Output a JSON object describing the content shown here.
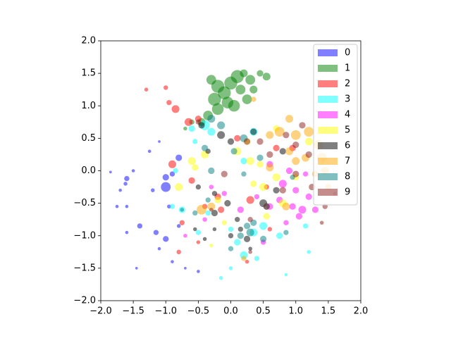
{
  "chart_data": {
    "type": "scatter",
    "alpha": 0.5,
    "legend": "upper right",
    "xlim": [
      -2,
      2
    ],
    "ylim": [
      -2,
      2
    ],
    "xticks": [
      {
        "value": -2,
        "label": "−2.0"
      },
      {
        "value": -1.5,
        "label": "−1.5"
      },
      {
        "value": -1,
        "label": "−1.0"
      },
      {
        "value": -0.5,
        "label": "−0.5"
      },
      {
        "value": 0,
        "label": "0.0"
      },
      {
        "value": 0.5,
        "label": "0.5"
      },
      {
        "value": 1,
        "label": "1.0"
      },
      {
        "value": 1.5,
        "label": "1.5"
      },
      {
        "value": 2,
        "label": "2.0"
      }
    ],
    "yticks": [
      {
        "value": -2,
        "label": "−2.0"
      },
      {
        "value": -1.5,
        "label": "−1.5"
      },
      {
        "value": -1,
        "label": "−1.0"
      },
      {
        "value": -0.5,
        "label": "−0.5"
      },
      {
        "value": 0,
        "label": "0.0"
      },
      {
        "value": 0.5,
        "label": "0.5"
      },
      {
        "value": 1,
        "label": "1.0"
      },
      {
        "value": 1.5,
        "label": "1.5"
      },
      {
        "value": 2,
        "label": "2.0"
      }
    ],
    "series": [
      {
        "name": "0",
        "color": "#0000ff",
        "x": [
          -1.85,
          -1.6,
          -1.62,
          -1.5,
          -1.7,
          -1.75,
          -1.6,
          -1.4,
          -1.2,
          -1.0,
          -1.0,
          -0.9,
          -1.15,
          -1.0,
          -0.8,
          -1.45,
          -1.1,
          -0.9,
          -0.7,
          -1.1,
          -0.8,
          -0.5,
          -1.6,
          -1.25,
          -0.95
        ],
        "values": [
          -0.02,
          -0.12,
          -0.2,
          0.0,
          -0.3,
          -0.55,
          -0.55,
          -0.85,
          -0.3,
          -0.25,
          -0.1,
          -0.05,
          -0.95,
          -1.05,
          -0.85,
          -1.5,
          -1.2,
          -1.4,
          -1.5,
          0.45,
          0.2,
          -1.55,
          -0.95,
          0.3,
          -0.55
        ],
        "sizes": [
          0.04,
          0.08,
          0.06,
          0.05,
          0.05,
          0.05,
          0.05,
          0.08,
          0.06,
          0.15,
          0.1,
          0.08,
          0.08,
          0.09,
          0.06,
          0.04,
          0.05,
          0.05,
          0.04,
          0.04,
          0.1,
          0.05,
          0.05,
          0.05,
          0.06
        ]
      },
      {
        "name": "1",
        "color": "#008000",
        "x": [
          -0.3,
          -0.2,
          -0.1,
          0.0,
          0.1,
          -0.05,
          -0.2,
          -0.35,
          0.15,
          0.3,
          0.45,
          0.55,
          0.2,
          -0.45,
          0.35,
          -0.7,
          -0.25,
          0.05,
          0.25,
          -0.6
        ],
        "values": [
          1.4,
          1.3,
          1.2,
          1.35,
          1.45,
          1.05,
          0.95,
          0.85,
          1.25,
          1.4,
          1.5,
          1.45,
          1.5,
          0.75,
          1.25,
          0.65,
          1.1,
          1.0,
          1.1,
          0.75
        ],
        "sizes": [
          0.15,
          0.2,
          0.2,
          0.2,
          0.2,
          0.18,
          0.18,
          0.15,
          0.15,
          0.15,
          0.1,
          0.12,
          0.12,
          0.12,
          0.12,
          0.06,
          0.2,
          0.18,
          0.15,
          0.08
        ]
      },
      {
        "name": "2",
        "color": "#ff0000",
        "x": [
          -1.3,
          -1.0,
          -0.95,
          -0.85,
          -0.5,
          -0.65,
          -0.9,
          -0.6,
          -0.3,
          0.3,
          -0.15,
          -0.5,
          -0.8,
          -0.2,
          0.25,
          0.55,
          0.7,
          0.95,
          0.1,
          -0.4,
          0.6,
          -0.75
        ],
        "values": [
          1.25,
          1.28,
          1.05,
          0.95,
          0.8,
          0.75,
          0.1,
          -0.15,
          0.0,
          -0.45,
          -0.6,
          -1.1,
          -1.25,
          -0.4,
          -1.4,
          -0.25,
          0.35,
          0.35,
          0.5,
          -0.55,
          -0.9,
          -0.8
        ],
        "sizes": [
          0.06,
          0.07,
          0.08,
          0.12,
          0.1,
          0.12,
          0.12,
          0.1,
          0.1,
          0.12,
          0.1,
          0.06,
          0.07,
          0.1,
          0.06,
          0.08,
          0.1,
          0.1,
          0.1,
          0.08,
          0.07,
          0.08
        ]
      },
      {
        "name": "3",
        "color": "#00ffff",
        "x": [
          -0.6,
          -0.4,
          -0.3,
          -0.85,
          -0.3,
          -0.55,
          -0.9,
          -0.75,
          -0.35,
          0.0,
          0.1,
          0.2,
          0.35,
          0.5,
          0.75,
          1.15,
          1.2,
          0.4,
          0.0,
          0.35,
          -0.15,
          0.85,
          -0.5,
          0.2
        ],
        "values": [
          0.65,
          0.7,
          0.6,
          0.0,
          0.0,
          0.45,
          -0.55,
          -0.6,
          -0.65,
          -0.9,
          -1.1,
          -1.3,
          -0.95,
          -0.85,
          -1.0,
          -0.85,
          -1.25,
          -1.35,
          -1.5,
          0.6,
          -1.65,
          -1.6,
          -0.95,
          0.15
        ],
        "sizes": [
          0.1,
          0.15,
          0.12,
          0.08,
          0.1,
          0.08,
          0.08,
          0.1,
          0.08,
          0.08,
          0.1,
          0.12,
          0.12,
          0.12,
          0.1,
          0.08,
          0.06,
          0.08,
          0.06,
          0.12,
          0.06,
          0.05,
          0.08,
          0.1
        ]
      },
      {
        "name": "4",
        "color": "#ff00ff",
        "x": [
          0.95,
          1.1,
          1.2,
          1.3,
          0.85,
          1.0,
          0.8,
          0.4,
          0.6,
          0.15,
          -0.1,
          -0.3,
          1.05,
          0.9,
          0.6,
          -0.7,
          0.5,
          -0.4,
          1.15,
          0.75
        ],
        "values": [
          -0.55,
          -0.6,
          -0.4,
          -0.6,
          -0.8,
          -0.3,
          -0.2,
          -0.4,
          0.1,
          -0.6,
          -0.35,
          -0.25,
          -0.7,
          0.0,
          -0.55,
          -1.0,
          -1.1,
          -0.75,
          -0.05,
          -0.45
        ],
        "sizes": [
          0.1,
          0.12,
          0.1,
          0.1,
          0.08,
          0.1,
          0.12,
          0.08,
          0.1,
          0.1,
          0.08,
          0.07,
          0.1,
          0.1,
          0.1,
          0.06,
          0.08,
          0.07,
          0.08,
          0.1
        ]
      },
      {
        "name": "5",
        "color": "#ffff00",
        "x": [
          -0.6,
          -0.4,
          0.1,
          0.3,
          0.25,
          0.5,
          0.7,
          0.8,
          0.55,
          -0.2,
          -0.8,
          1.2,
          0.45,
          -0.1,
          -0.55,
          1.0,
          -0.3,
          0.7,
          0.35
        ],
        "values": [
          0.15,
          0.25,
          0.3,
          0.15,
          0.45,
          -0.25,
          -0.1,
          -0.5,
          -0.7,
          -0.45,
          -0.25,
          0.45,
          0.1,
          -0.8,
          0.05,
          -0.1,
          -1.15,
          0.65,
          -0.2
        ],
        "sizes": [
          0.12,
          0.12,
          0.12,
          0.12,
          0.1,
          0.12,
          0.12,
          0.12,
          0.1,
          0.1,
          0.12,
          0.12,
          0.1,
          0.08,
          0.1,
          0.1,
          0.06,
          0.1,
          0.1
        ]
      },
      {
        "name": "6",
        "color": "#000000",
        "x": [
          -0.45,
          0.35,
          -0.15,
          -0.35,
          0.0,
          -0.25,
          -0.05,
          -0.25,
          0.0,
          0.25,
          0.15,
          -0.4,
          -0.5,
          -0.55,
          0.3,
          0.5,
          0.8,
          0.7,
          -0.25,
          0.1
        ],
        "values": [
          0.7,
          0.6,
          0.55,
          0.3,
          0.45,
          -0.35,
          -0.5,
          -0.65,
          -1.0,
          -1.05,
          -0.9,
          -1.05,
          -0.25,
          -0.9,
          -1.2,
          -0.5,
          0.3,
          -0.3,
          -0.9,
          -0.75
        ],
        "sizes": [
          0.1,
          0.1,
          0.12,
          0.08,
          0.1,
          0.08,
          0.1,
          0.1,
          0.08,
          0.1,
          0.08,
          0.06,
          0.08,
          0.06,
          0.06,
          0.12,
          0.1,
          0.1,
          0.06,
          0.08
        ]
      },
      {
        "name": "7",
        "color": "#ffa500",
        "x": [
          0.6,
          0.75,
          0.9,
          1.0,
          1.2,
          1.35,
          1.4,
          1.45,
          1.3,
          1.0,
          0.85,
          -0.45,
          -0.3,
          0.35,
          1.5,
          0.6,
          0.2,
          0.9,
          1.15
        ],
        "values": [
          0.55,
          0.6,
          0.8,
          0.55,
          0.6,
          0.4,
          0.2,
          0.0,
          -0.05,
          0.15,
          -0.55,
          -0.6,
          -0.55,
          1.1,
          -0.25,
          0.05,
          -1.35,
          0.3,
          0.2
        ],
        "sizes": [
          0.12,
          0.15,
          0.12,
          0.15,
          0.15,
          0.15,
          0.15,
          0.12,
          0.1,
          0.12,
          0.12,
          0.15,
          0.12,
          0.08,
          0.1,
          0.12,
          0.08,
          0.12,
          0.12
        ]
      },
      {
        "name": "8",
        "color": "#008080",
        "x": [
          -0.3,
          -0.15,
          0.2,
          0.05,
          -0.4,
          0.2,
          0.55,
          0.3,
          0.15,
          0.5,
          0.35,
          -0.55,
          -0.35,
          0.95,
          0.85,
          -0.75,
          0.25,
          0.0,
          0.45
        ],
        "values": [
          0.8,
          0.7,
          0.5,
          0.3,
          0.35,
          -0.05,
          -0.55,
          -0.95,
          -1.0,
          -1.05,
          -0.8,
          -0.65,
          -0.45,
          -0.1,
          -0.95,
          -0.6,
          -0.85,
          -1.2,
          0.2
        ],
        "sizes": [
          0.12,
          0.12,
          0.12,
          0.1,
          0.1,
          0.08,
          0.1,
          0.12,
          0.1,
          0.1,
          0.1,
          0.08,
          0.08,
          0.08,
          0.08,
          0.06,
          0.1,
          0.08,
          0.1
        ]
      },
      {
        "name": "9",
        "color": "#8b1a1a",
        "x": [
          -0.5,
          0.25,
          0.6,
          0.85,
          1.0,
          1.1,
          1.2,
          1.25,
          1.45,
          1.4,
          0.55,
          -0.1,
          -0.3,
          0.3,
          0.8,
          1.0,
          0.3,
          1.6,
          0.45
        ],
        "values": [
          0.75,
          0.45,
          0.25,
          0.55,
          0.4,
          0.7,
          0.25,
          -0.25,
          -0.55,
          -0.8,
          -0.55,
          -0.05,
          -0.6,
          -0.75,
          -0.3,
          -0.05,
          -1.25,
          -0.35,
          0.45
        ],
        "sizes": [
          0.08,
          0.1,
          0.1,
          0.1,
          0.1,
          0.1,
          0.1,
          0.1,
          0.08,
          0.06,
          0.1,
          0.1,
          0.06,
          0.08,
          0.1,
          0.1,
          0.06,
          0.06,
          0.1
        ]
      }
    ]
  }
}
